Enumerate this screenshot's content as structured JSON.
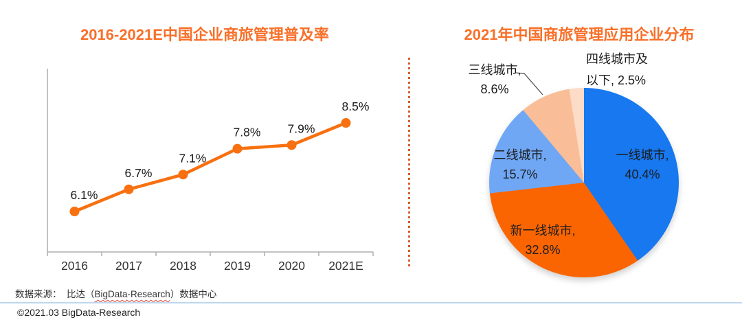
{
  "header": {
    "left_title": "2016-2021E中国企业商旅管理普及率",
    "right_title": "2021年中国商旅管理应用企业分布"
  },
  "chart_data": [
    {
      "type": "line",
      "title": "2016-2021E中国企业商旅管理普及率",
      "categories": [
        "2016",
        "2017",
        "2018",
        "2019",
        "2020",
        "2021E"
      ],
      "values": [
        6.1,
        6.7,
        7.1,
        7.8,
        7.9,
        8.5
      ],
      "point_labels": [
        "6.1%",
        "6.7%",
        "7.1%",
        "7.8%",
        "7.9%",
        "8.5%"
      ],
      "unit": "%",
      "xlabel": "",
      "ylabel": "",
      "line_color": "#f8700f",
      "axis_color": "#aeaeae",
      "grid": false,
      "legend": "none"
    },
    {
      "type": "pie",
      "title": "2021年中国商旅管理应用企业分布",
      "start_angle_deg": 0,
      "direction": "clockwise",
      "slices": [
        {
          "name": "一线城市",
          "value": 40.4,
          "color": "#1778f0",
          "label_lines": [
            "一线城市,",
            "40.4%"
          ],
          "label_position": "inside"
        },
        {
          "name": "新一线城市",
          "value": 32.8,
          "color": "#fa6502",
          "label_lines": [
            "新一线城市,",
            "32.8%"
          ],
          "label_position": "inside"
        },
        {
          "name": "二线城市",
          "value": 15.7,
          "color": "#70a7f4",
          "label_lines": [
            "二线城市,",
            "15.7%"
          ],
          "label_position": "inside"
        },
        {
          "name": "三线城市",
          "value": 8.6,
          "color": "#f9be98",
          "label_lines": [
            "三线城市,",
            "8.6%"
          ],
          "label_position": "outside-leader-line"
        },
        {
          "name": "四线城市及以下",
          "value": 2.5,
          "color": "#fcdcc6",
          "label_lines": [
            "四线城市及",
            "以下, 2.5%"
          ],
          "label_position": "outside"
        }
      ]
    }
  ],
  "footer": {
    "source_prefix": "数据来源：  比达（",
    "source_brand": "BigData-Research",
    "source_suffix": "）数据中心",
    "copyright": "©2021.03 BigData-Research"
  },
  "colors": {
    "title_accent": "#f8702a",
    "divider_dash": "#d85c30",
    "footer_divider": "#bdd7ed",
    "spellcheck_underline": "#e04a3f"
  }
}
